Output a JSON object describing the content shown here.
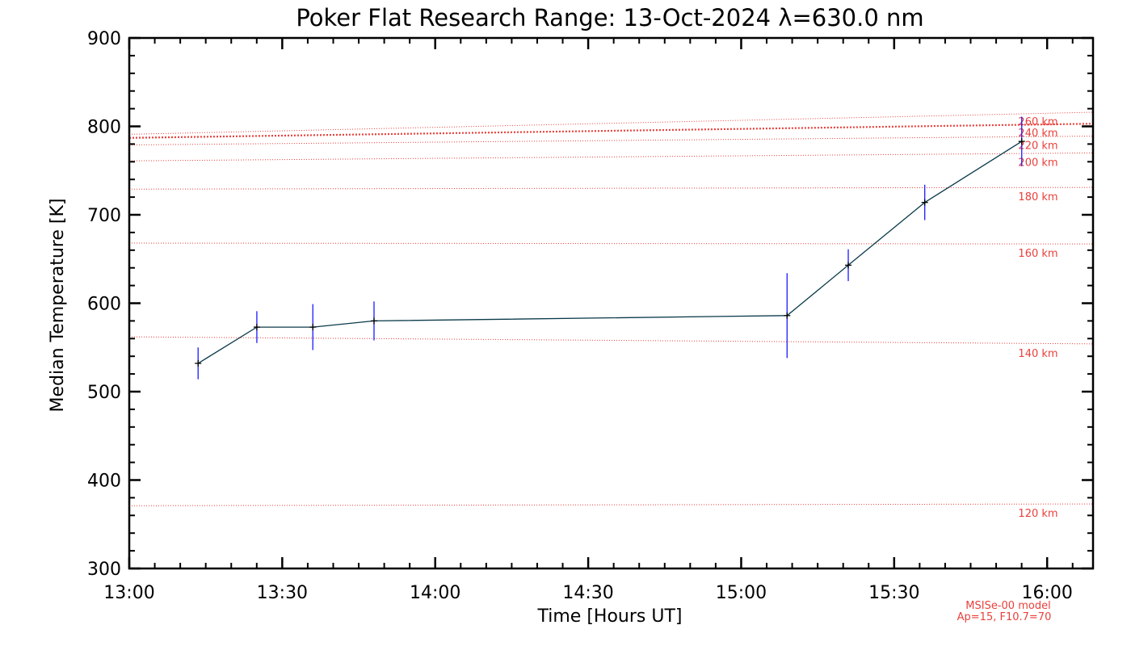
{
  "chart_data": {
    "type": "line",
    "title": "Poker Flat Research Range: 13-Oct-2024 λ=630.0 nm",
    "xlabel": "Time [Hours UT]",
    "ylabel": "Median Temperature [K]",
    "xlim": [
      13.0,
      16.15
    ],
    "ylim": [
      300,
      900
    ],
    "x_ticks": [
      {
        "value": 13.0,
        "label": "13:00"
      },
      {
        "value": 13.5,
        "label": "13:30"
      },
      {
        "value": 14.0,
        "label": "14:00"
      },
      {
        "value": 14.5,
        "label": "14:30"
      },
      {
        "value": 15.0,
        "label": "15:00"
      },
      {
        "value": 15.5,
        "label": "15:30"
      },
      {
        "value": 16.0,
        "label": "16:00"
      }
    ],
    "y_ticks": [
      300,
      400,
      500,
      600,
      700,
      800,
      900
    ],
    "series": [
      {
        "name": "Median Temperature",
        "color": "#0a3a4a",
        "error_color": "#1a1aff",
        "x": [
          13.225,
          13.417,
          13.6,
          13.8,
          15.15,
          15.35,
          15.6,
          15.917
        ],
        "y": [
          532,
          573,
          573,
          580,
          586,
          643,
          714,
          783
        ],
        "error": [
          18,
          18,
          26,
          22,
          48,
          18,
          20,
          28
        ]
      }
    ],
    "model_lines": {
      "color": "#e8413c",
      "x_range": [
        13.0,
        16.15
      ],
      "lines": [
        {
          "label": "120 km",
          "y_start": 371,
          "y_end": 373
        },
        {
          "label": "140 km",
          "y_start": 562,
          "y_end": 554
        },
        {
          "label": "160 km",
          "y_start": 668,
          "y_end": 667
        },
        {
          "label": "180 km",
          "y_start": 729,
          "y_end": 731
        },
        {
          "label": "200 km",
          "y_start": 761,
          "y_end": 770
        },
        {
          "label": "220 km",
          "y_start": 779,
          "y_end": 789
        },
        {
          "label": "240 km",
          "y_start": 787,
          "y_end": 803,
          "emphasis": true
        },
        {
          "label": "260 km",
          "y_start": 791,
          "y_end": 816
        }
      ]
    },
    "annotations": [
      "MSISe-00 model",
      "Ap=15, F10.7=70"
    ]
  }
}
